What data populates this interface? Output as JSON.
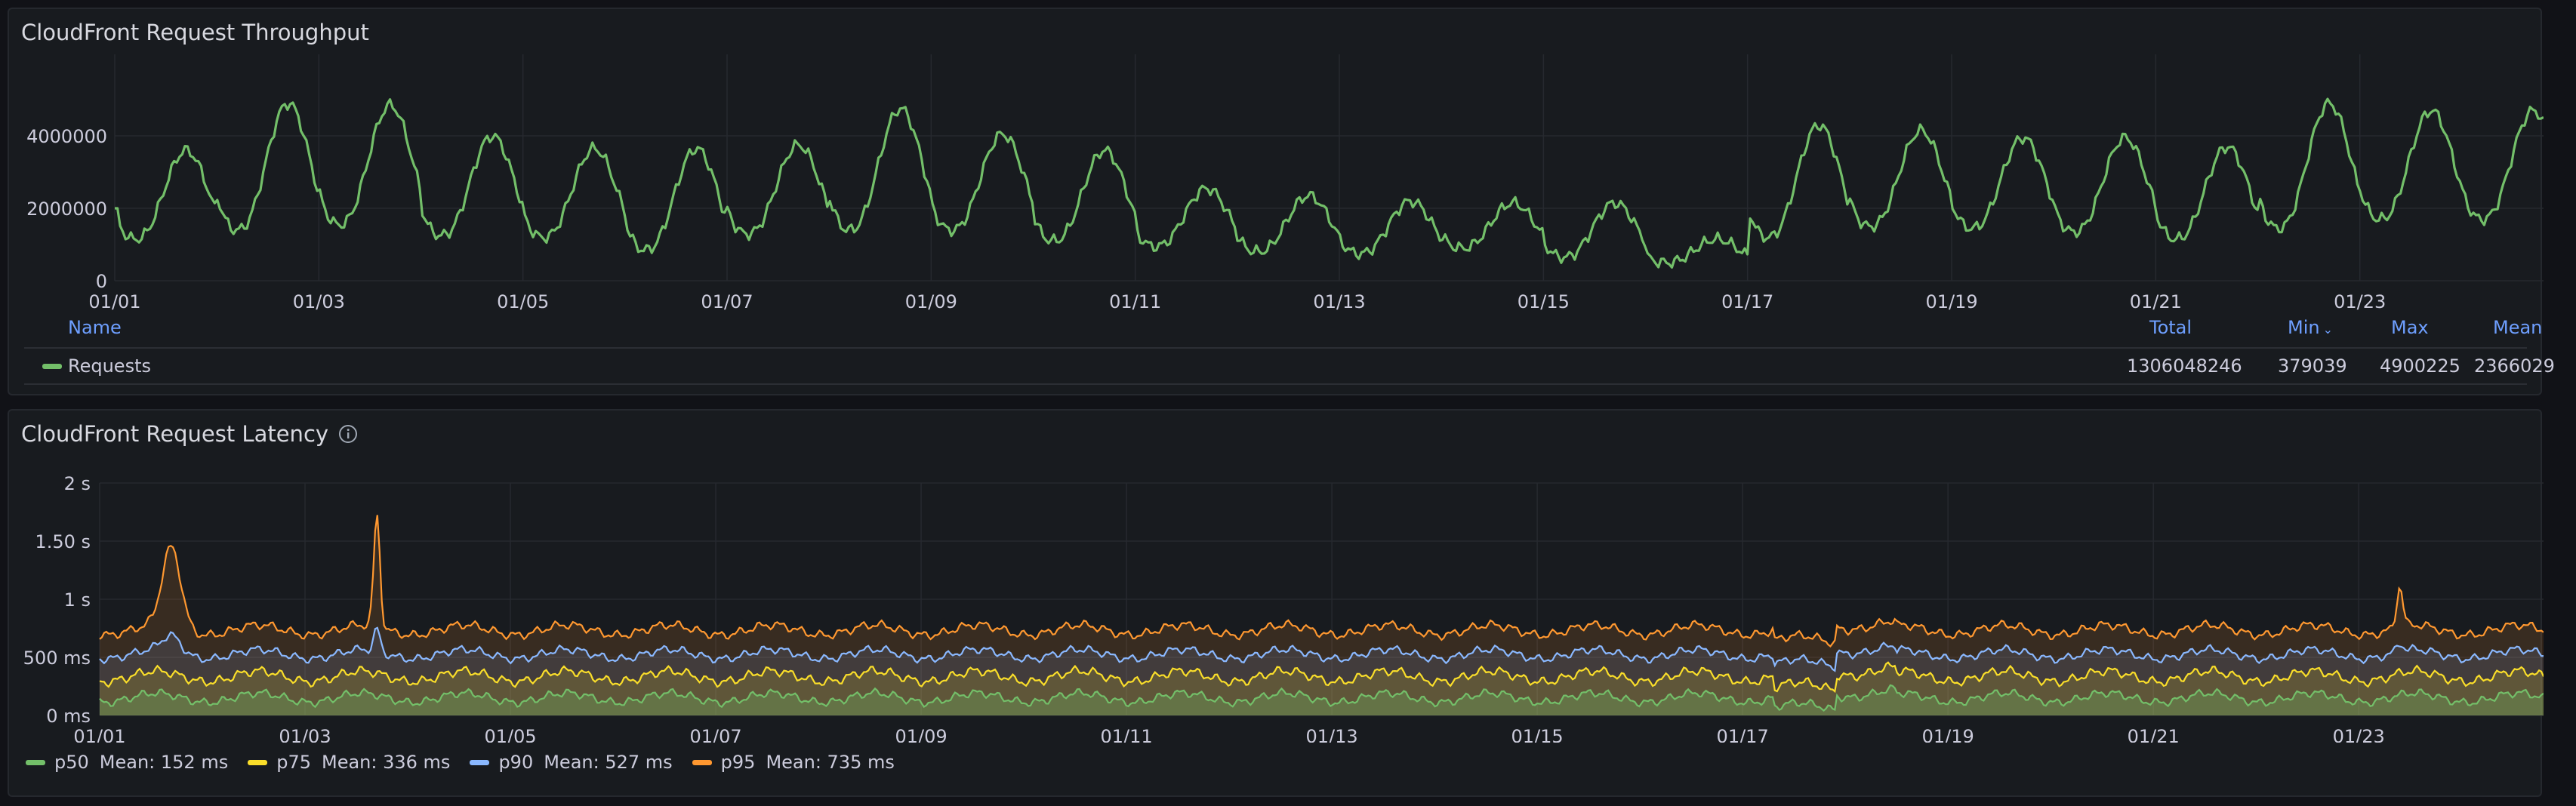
{
  "panels": {
    "throughput_title": "CloudFront Request Throughput",
    "latency_title": "CloudFront Request Latency"
  },
  "throughput_table": {
    "headers": {
      "name": "Name",
      "total": "Total",
      "min": "Min",
      "max": "Max",
      "mean": "Mean"
    },
    "sort_indicator": "chevron-down-icon",
    "row": {
      "name": "Requests",
      "total": "1306048246",
      "min": "379039",
      "max": "4900225",
      "mean": "2366029"
    }
  },
  "latency_legend": [
    {
      "name": "p50",
      "mean": "Mean: 152 ms",
      "color": "#73bf69"
    },
    {
      "name": "p75",
      "mean": "Mean: 336 ms",
      "color": "#fade2a"
    },
    {
      "name": "p90",
      "mean": "Mean: 527 ms",
      "color": "#8ab8ff"
    },
    {
      "name": "p95",
      "mean": "Mean: 735 ms",
      "color": "#ff9830"
    }
  ],
  "chart_data": [
    {
      "type": "line",
      "title": "CloudFront Request Throughput",
      "y_ticks": [
        "0",
        "2000000",
        "4000000"
      ],
      "x_ticks": [
        "01/01",
        "01/03",
        "01/05",
        "01/07",
        "01/09",
        "01/11",
        "01/13",
        "01/15",
        "01/17",
        "01/19",
        "01/21",
        "01/23"
      ],
      "xlim": [
        0,
        23.8
      ],
      "ylim": [
        0,
        5000000
      ],
      "legend": "bottom-table",
      "grid": true,
      "series": [
        {
          "name": "Requests",
          "color": "#73bf69",
          "daily_peaks": [
            3600000,
            4900000,
            4850000,
            4000000,
            3650000,
            3650000,
            3750000,
            4750000,
            4050000,
            3600000,
            2550000,
            2350000,
            2200000,
            2150000,
            2150000,
            1150000,
            4300000,
            4150000,
            3950000,
            3950000,
            3700000,
            4900000,
            4700000
          ],
          "daily_troughs": [
            1150000,
            1400000,
            1550000,
            1250000,
            1200000,
            850000,
            1300000,
            1400000,
            1400000,
            1100000,
            950000,
            800000,
            750000,
            900000,
            650000,
            500000,
            1200000,
            1500000,
            1450000,
            1350000,
            1150000,
            1450000,
            1700000
          ]
        }
      ]
    },
    {
      "type": "area",
      "title": "CloudFront Request Latency",
      "y_ticks": [
        "0 ms",
        "500 ms",
        "1 s",
        "1.50 s",
        "2 s"
      ],
      "x_ticks": [
        "01/01",
        "01/03",
        "01/05",
        "01/07",
        "01/09",
        "01/11",
        "01/13",
        "01/15",
        "01/17",
        "01/19",
        "01/21",
        "01/23"
      ],
      "xlim": [
        0,
        23.8
      ],
      "ylim": [
        0,
        2000
      ],
      "legend": "bottom",
      "grid": true,
      "series": [
        {
          "name": "p50",
          "mean_ms": 152,
          "color": "#73bf69"
        },
        {
          "name": "p75",
          "mean_ms": 336,
          "color": "#fade2a"
        },
        {
          "name": "p90",
          "mean_ms": 527,
          "color": "#8ab8ff"
        },
        {
          "name": "p95",
          "mean_ms": 735,
          "color": "#ff9830"
        }
      ],
      "spikes": [
        {
          "series": "p95",
          "x": 0.7,
          "y_ms": 1490
        },
        {
          "series": "p95",
          "x": 2.7,
          "y_ms": 1760
        },
        {
          "series": "p95",
          "x": 22.4,
          "y_ms": 1150
        }
      ]
    }
  ]
}
